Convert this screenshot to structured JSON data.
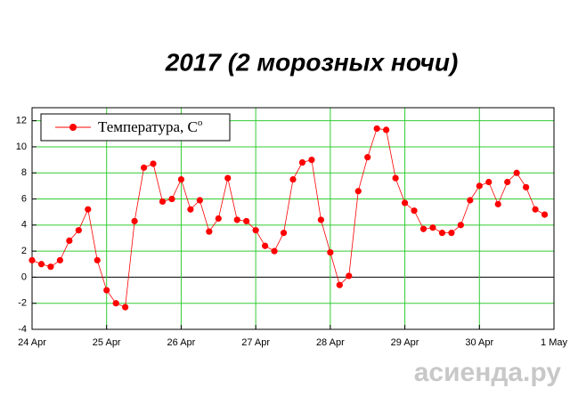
{
  "chart_data": {
    "type": "line",
    "title": "2017 (2 морозных ночи)",
    "x": [
      0,
      0.125,
      0.25,
      0.375,
      0.5,
      0.625,
      0.75,
      0.875,
      1,
      1.125,
      1.25,
      1.375,
      1.5,
      1.625,
      1.75,
      1.875,
      2,
      2.125,
      2.25,
      2.375,
      2.5,
      2.625,
      2.75,
      2.875,
      3,
      3.125,
      3.25,
      3.375,
      3.5,
      3.625,
      3.75,
      3.875,
      4,
      4.125,
      4.25,
      4.375,
      4.5,
      4.625,
      4.75,
      4.875,
      5,
      5.125,
      5.25,
      5.375,
      5.5,
      5.625,
      5.75,
      5.875,
      6,
      6.125,
      6.25,
      6.375,
      6.5,
      6.625,
      6.75,
      6.875
    ],
    "series": [
      {
        "name": "Температура, C",
        "color": "#ff0000",
        "values": [
          1.3,
          1.0,
          0.8,
          1.3,
          2.8,
          3.6,
          5.2,
          1.3,
          -1.0,
          -2.0,
          -2.3,
          4.3,
          8.4,
          8.7,
          5.8,
          6.0,
          7.5,
          5.2,
          5.9,
          3.5,
          4.5,
          7.6,
          4.4,
          4.3,
          3.6,
          2.4,
          2.0,
          3.4,
          7.5,
          8.8,
          9.0,
          4.4,
          1.9,
          -0.6,
          0.1,
          6.6,
          9.2,
          11.4,
          11.3,
          7.6,
          5.7,
          5.1,
          3.7,
          3.8,
          3.4,
          3.4,
          4.0,
          5.9,
          7.0,
          7.3,
          5.6,
          7.3,
          8.0,
          6.9,
          5.2,
          4.8
        ]
      }
    ],
    "legend_superscript": "o",
    "xlim": [
      0,
      7
    ],
    "xticks": [
      {
        "value": 0,
        "label": "24 Apr"
      },
      {
        "value": 1,
        "label": "25 Apr"
      },
      {
        "value": 2,
        "label": "26 Apr"
      },
      {
        "value": 3,
        "label": "27 Apr"
      },
      {
        "value": 4,
        "label": "28 Apr"
      },
      {
        "value": 5,
        "label": "29 Apr"
      },
      {
        "value": 6,
        "label": "30 Apr"
      },
      {
        "value": 7,
        "label": "1 May"
      }
    ],
    "ylim": [
      -4,
      13
    ],
    "yticks": [
      -4,
      -2,
      0,
      2,
      4,
      6,
      8,
      10,
      12
    ],
    "grid": true,
    "grid_color": "#33cc33",
    "legend": "upper left",
    "watermark": "асиенда.ру"
  }
}
